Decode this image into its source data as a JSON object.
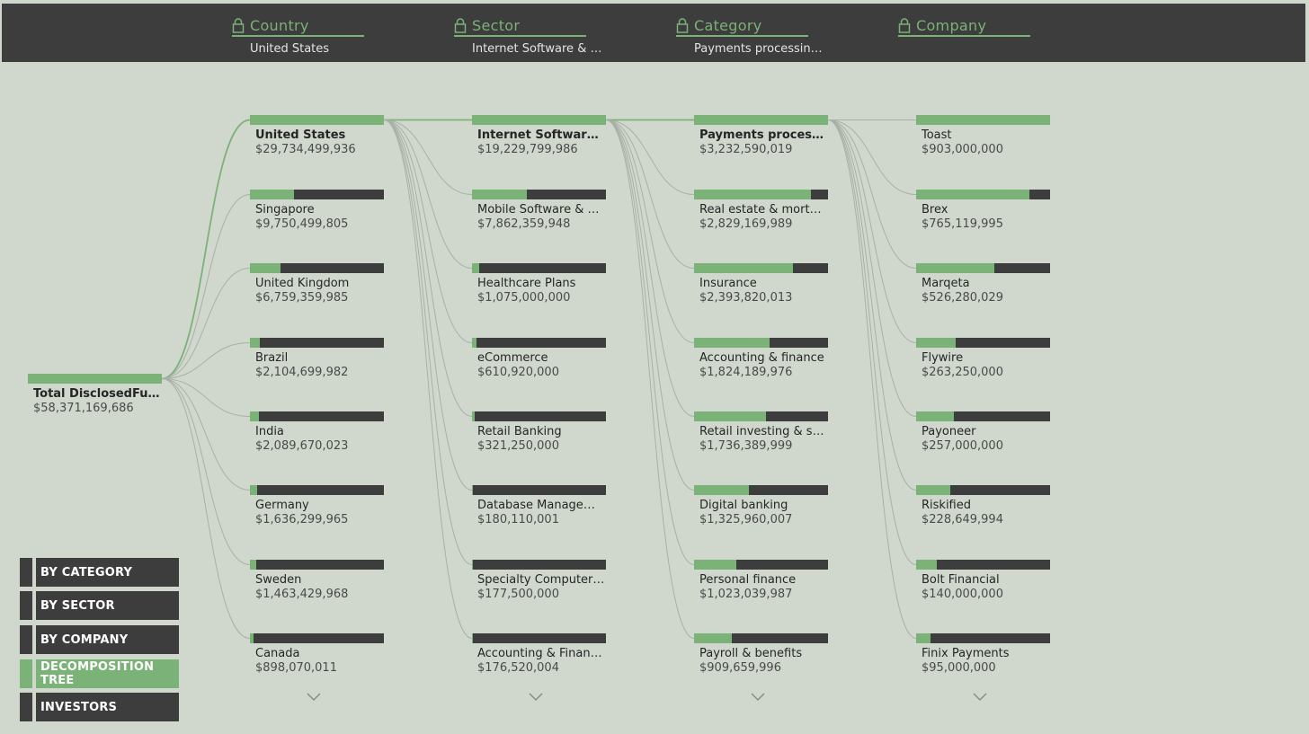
{
  "header": {
    "levels": [
      {
        "title": "Country",
        "value": "United States",
        "icon": "lock-icon"
      },
      {
        "title": "Sector",
        "value": "Internet Software & Se...",
        "icon": "lock-icon"
      },
      {
        "title": "Category",
        "value": "Payments processing ...",
        "icon": "lock-icon"
      },
      {
        "title": "Company",
        "value": "",
        "icon": "lock-icon"
      }
    ]
  },
  "root": {
    "label": "Total DisclosedFundi...",
    "value": "$58,371,169,686",
    "fraction": 1.0
  },
  "columns": [
    {
      "name": "country",
      "nodes": [
        {
          "label": "United States",
          "value": "$29,734,499,936",
          "fraction": 1.0,
          "selected": true
        },
        {
          "label": "Singapore",
          "value": "$9,750,499,805",
          "fraction": 0.328
        },
        {
          "label": "United Kingdom",
          "value": "$6,759,359,985",
          "fraction": 0.227
        },
        {
          "label": "Brazil",
          "value": "$2,104,699,982",
          "fraction": 0.071
        },
        {
          "label": "India",
          "value": "$2,089,670,023",
          "fraction": 0.07
        },
        {
          "label": "Germany",
          "value": "$1,636,299,965",
          "fraction": 0.055
        },
        {
          "label": "Sweden",
          "value": "$1,463,429,968",
          "fraction": 0.049
        },
        {
          "label": "Canada",
          "value": "$898,070,011",
          "fraction": 0.03
        }
      ]
    },
    {
      "name": "sector",
      "nodes": [
        {
          "label": "Internet Software & ...",
          "value": "$19,229,799,986",
          "fraction": 1.0,
          "selected": true
        },
        {
          "label": "Mobile Software & Ser...",
          "value": "$7,862,359,948",
          "fraction": 0.409
        },
        {
          "label": "Healthcare Plans",
          "value": "$1,075,000,000",
          "fraction": 0.056
        },
        {
          "label": "eCommerce",
          "value": "$610,920,000",
          "fraction": 0.032
        },
        {
          "label": "Retail Banking",
          "value": "$321,250,000",
          "fraction": 0.017
        },
        {
          "label": "Database Managemen...",
          "value": "$180,110,001",
          "fraction": 0.009
        },
        {
          "label": "Specialty Computer H...",
          "value": "$177,500,000",
          "fraction": 0.009
        },
        {
          "label": "Accounting & Finance ...",
          "value": "$176,520,004",
          "fraction": 0.009
        }
      ]
    },
    {
      "name": "category",
      "nodes": [
        {
          "label": "Payments processing...",
          "value": "$3,232,590,019",
          "fraction": 1.0,
          "selected": true
        },
        {
          "label": "Real estate & mortgage",
          "value": "$2,829,169,989",
          "fraction": 0.875
        },
        {
          "label": "Insurance",
          "value": "$2,393,820,013",
          "fraction": 0.741
        },
        {
          "label": "Accounting & finance",
          "value": "$1,824,189,976",
          "fraction": 0.564
        },
        {
          "label": "Retail investing & seco...",
          "value": "$1,736,389,999",
          "fraction": 0.537
        },
        {
          "label": "Digital banking",
          "value": "$1,325,960,007",
          "fraction": 0.41
        },
        {
          "label": "Personal finance",
          "value": "$1,023,039,987",
          "fraction": 0.316
        },
        {
          "label": "Payroll & benefits",
          "value": "$909,659,996",
          "fraction": 0.281
        }
      ]
    },
    {
      "name": "company",
      "nodes": [
        {
          "label": "Toast",
          "value": "$903,000,000",
          "fraction": 1.0
        },
        {
          "label": "Brex",
          "value": "$765,119,995",
          "fraction": 0.847
        },
        {
          "label": "Marqeta",
          "value": "$526,280,029",
          "fraction": 0.583
        },
        {
          "label": "Flywire",
          "value": "$263,250,000",
          "fraction": 0.292
        },
        {
          "label": "Payoneer",
          "value": "$257,000,000",
          "fraction": 0.285
        },
        {
          "label": "Riskified",
          "value": "$228,649,994",
          "fraction": 0.253
        },
        {
          "label": "Bolt Financial",
          "value": "$140,000,000",
          "fraction": 0.155
        },
        {
          "label": "Finix Payments",
          "value": "$95,000,000",
          "fraction": 0.105
        }
      ]
    }
  ],
  "nav": [
    {
      "label": "BY CATEGORY",
      "active": false
    },
    {
      "label": "BY SECTOR",
      "active": false
    },
    {
      "label": "BY COMPANY",
      "active": false
    },
    {
      "label": "DECOMPOSITION TREE",
      "active": true
    },
    {
      "label": "INVESTORS",
      "active": false
    }
  ],
  "colors": {
    "accent": "#7ab277",
    "dark": "#3d3d3d",
    "background": "#d0d8ce",
    "link": "#a9b0a7"
  }
}
